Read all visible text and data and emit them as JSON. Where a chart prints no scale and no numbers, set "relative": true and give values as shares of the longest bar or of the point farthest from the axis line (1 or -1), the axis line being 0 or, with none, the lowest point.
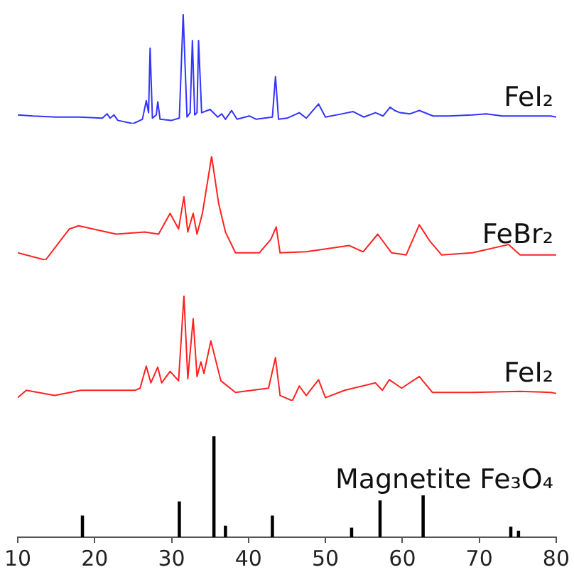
{
  "chart_data": [
    {
      "type": "line",
      "relative": true,
      "xlim": [
        10,
        80
      ],
      "xticks": [
        10,
        20,
        30,
        40,
        50,
        60,
        70,
        80
      ],
      "tick_labels": false,
      "series": [
        {
          "name": "FeI₂",
          "color": "#3333ff",
          "x": [
            10,
            12,
            15,
            18,
            21,
            21.6,
            22,
            22.5,
            23,
            25,
            26.2,
            26.7,
            27.0,
            27.2,
            27.5,
            28.0,
            28.2,
            28.5,
            30,
            31.0,
            31.5,
            32.0,
            32.4,
            32.7,
            33.0,
            33.3,
            33.5,
            33.9,
            35.0,
            36.0,
            36.5,
            37.0,
            37.8,
            38.5,
            40.1,
            41,
            43.1,
            43.5,
            43.9,
            45,
            46.6,
            47.5,
            49.1,
            50,
            52.2,
            53.6,
            55,
            56.5,
            57.5,
            58.4,
            59,
            59.7,
            61,
            62.2,
            64,
            66,
            69.1,
            70.9,
            73,
            76,
            79.3,
            80
          ],
          "values": [
            0.08,
            0.07,
            0.06,
            0.06,
            0.05,
            0.09,
            0.05,
            0.08,
            0.03,
            0,
            0.04,
            0.21,
            0.1,
            0.69,
            0.05,
            0.08,
            0.2,
            0.04,
            0.03,
            0.05,
            1,
            0.06,
            0.1,
            0.76,
            0.08,
            0.1,
            0.76,
            0.1,
            0.13,
            0.06,
            0.09,
            0.04,
            0.12,
            0.04,
            0.07,
            0.04,
            0.06,
            0.43,
            0.04,
            0.05,
            0.1,
            0.05,
            0.18,
            0.06,
            0.09,
            0.11,
            0.06,
            0.1,
            0.07,
            0.15,
            0.12,
            0.1,
            0.09,
            0.12,
            0.07,
            0.07,
            0.08,
            0.09,
            0.07,
            0.07,
            0.07,
            0.06
          ]
        }
      ]
    },
    {
      "type": "line",
      "relative": true,
      "xlim": [
        10,
        80
      ],
      "xticks": [
        10,
        20,
        30,
        40,
        50,
        60,
        70,
        80
      ],
      "tick_labels": false,
      "series": [
        {
          "name": "FeBr₂",
          "color": "#ff2222",
          "x": [
            10,
            13.6,
            16.7,
            17.9,
            22.8,
            26.5,
            28.3,
            29.8,
            30.9,
            31.6,
            32.1,
            32.8,
            33.3,
            34.0,
            35.2,
            36.1,
            37.0,
            38.3,
            41.4,
            42.9,
            43.6,
            44.1,
            47.5,
            53.1,
            54.9,
            56.8,
            58.6,
            60.5,
            62.2,
            63.6,
            65.1,
            69.1,
            73.8,
            75.3,
            79.3,
            80
          ],
          "values": [
            0.07,
            0,
            0.3,
            0.33,
            0.25,
            0.27,
            0.25,
            0.45,
            0.3,
            0.61,
            0.27,
            0.45,
            0.25,
            0.45,
            1,
            0.55,
            0.27,
            0.07,
            0.07,
            0.2,
            0.32,
            0.07,
            0.08,
            0.14,
            0.08,
            0.25,
            0.07,
            0.05,
            0.34,
            0.18,
            0.05,
            0.07,
            0.15,
            0.05,
            0.05,
            0.05
          ]
        }
      ]
    },
    {
      "type": "line",
      "relative": true,
      "xlim": [
        10,
        80
      ],
      "xticks": [
        10,
        20,
        30,
        40,
        50,
        60,
        70,
        80
      ],
      "tick_labels": false,
      "series": [
        {
          "name": "FeI₂",
          "color": "#ff2222",
          "x": [
            10,
            11.1,
            14.8,
            18.2,
            25.3,
            25.9,
            26.7,
            27.3,
            28.2,
            28.7,
            29.8,
            30.9,
            31.6,
            32.1,
            32.8,
            33.3,
            33.8,
            34.2,
            35.1,
            36.4,
            38.3,
            42.6,
            43.5,
            44.1,
            45.7,
            46.6,
            47.5,
            49.1,
            50.0,
            52.5,
            56.5,
            57.4,
            58.3,
            59.9,
            62.2,
            63.9,
            69.1,
            75.3,
            79.3,
            80
          ],
          "values": [
            0.03,
            0.1,
            0.05,
            0.1,
            0.1,
            0.12,
            0.33,
            0.17,
            0.32,
            0.17,
            0.28,
            0.19,
            1,
            0.21,
            0.78,
            0.23,
            0.37,
            0.26,
            0.57,
            0.19,
            0.08,
            0.12,
            0.41,
            0.05,
            0,
            0.14,
            0.05,
            0.2,
            0.03,
            0.1,
            0.17,
            0.1,
            0.2,
            0.12,
            0.23,
            0.08,
            0.08,
            0.09,
            0.08,
            0.07
          ]
        }
      ]
    },
    {
      "type": "bar",
      "relative": true,
      "xlim": [
        10,
        80
      ],
      "xticks": [
        10,
        20,
        30,
        40,
        50,
        60,
        70,
        80
      ],
      "tick_labels": "x",
      "series": [
        {
          "name": "Magnetite Fe₃O₄",
          "color": "#000000",
          "x": [
            18.4,
            31.0,
            35.5,
            37.0,
            43.1,
            53.4,
            57.1,
            62.7,
            74.1,
            75.1
          ],
          "values": [
            0.21,
            0.35,
            1,
            0.11,
            0.21,
            0.09,
            0.36,
            0.41,
            0.1,
            0.06
          ]
        }
      ]
    }
  ]
}
